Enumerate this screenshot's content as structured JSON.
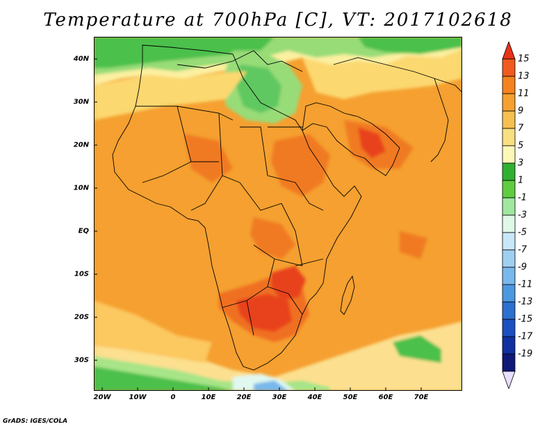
{
  "title": "Temperature at 700hPa [C], VT: 2017102618",
  "credit": "GrADS: IGES/COLA",
  "map": {
    "projection": "lat-lon",
    "lon_range": [
      -25,
      80
    ],
    "lat_range": [
      -37,
      45
    ],
    "base_field_color": "#f5a030",
    "lat_labels": [
      "40N",
      "30N",
      "20N",
      "10N",
      "EQ",
      "10S",
      "20S",
      "30S"
    ],
    "lon_labels": [
      "20W",
      "10W",
      "0",
      "10E",
      "20E",
      "30E",
      "40E",
      "50E",
      "60E",
      "70E"
    ]
  },
  "legend": {
    "labels": [
      "15",
      "13",
      "11",
      "9",
      "7",
      "5",
      "3",
      "1",
      "-1",
      "-3",
      "-5",
      "-7",
      "-9",
      "-11",
      "-13",
      "-15",
      "-17",
      "-19"
    ],
    "colors": [
      "#e8321a",
      "#f05a1e",
      "#f5821e",
      "#f5a030",
      "#f5c050",
      "#f8e080",
      "#fcf8b8",
      "#30b030",
      "#60cc40",
      "#a0e8a0",
      "#e0f8e8",
      "#c8e8f8",
      "#a0d0f0",
      "#78b8ec",
      "#4c98e0",
      "#2c70d0",
      "#1c50c0",
      "#1030a0",
      "#101878",
      "#e8e0ff"
    ]
  }
}
